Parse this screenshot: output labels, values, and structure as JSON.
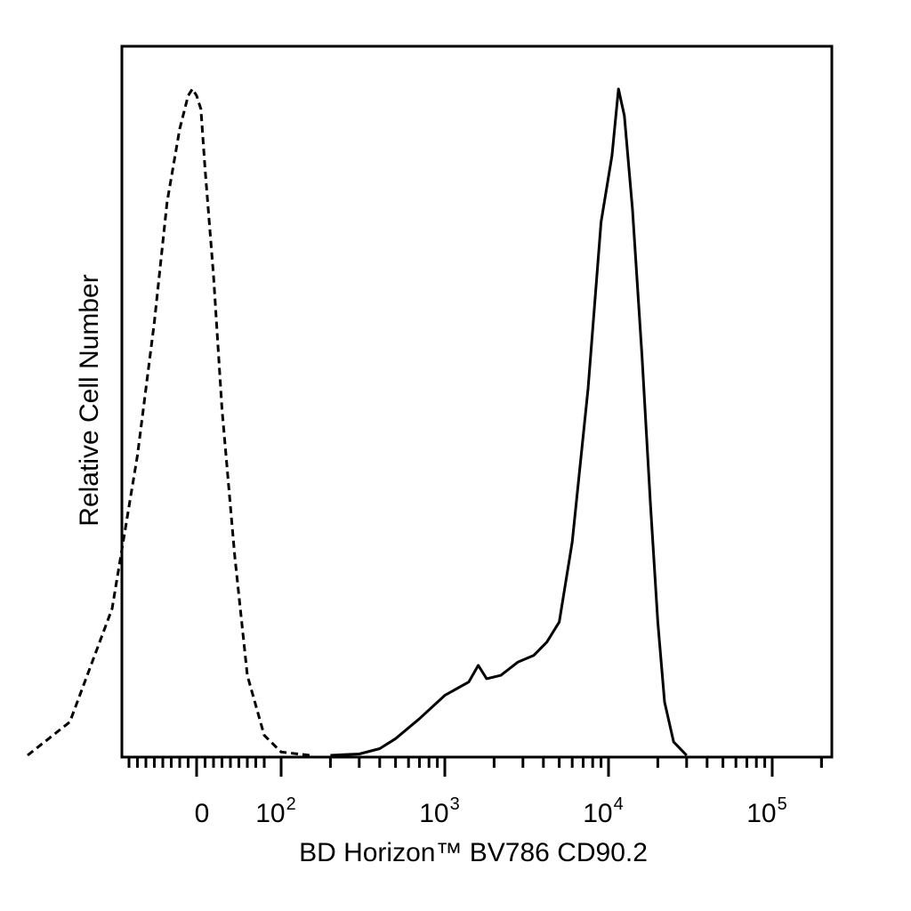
{
  "chart_data": {
    "type": "line",
    "title": "",
    "xlabel": "BD Horizon™ BV786 CD90.2",
    "ylabel": "Relative Cell Number",
    "x_scale": "biexponential",
    "xlim": [
      -500,
      250000
    ],
    "ylim": [
      0,
      1.0
    ],
    "grid": false,
    "legend": "none",
    "x_tick_labels": [
      {
        "value": 0,
        "base": "0",
        "exp": ""
      },
      {
        "value": 100,
        "base": "10",
        "exp": "2"
      },
      {
        "value": 1000,
        "base": "10",
        "exp": "3"
      },
      {
        "value": 10000,
        "base": "10",
        "exp": "4"
      },
      {
        "value": 100000,
        "base": "10",
        "exp": "5"
      }
    ],
    "series": [
      {
        "style": "dashed",
        "color": "#000000",
        "x": [
          -200,
          -150,
          -100,
          -70,
          -50,
          -35,
          -20,
          -10,
          -5,
          0,
          5,
          10,
          20,
          30,
          45,
          60,
          80,
          100,
          150
        ],
        "y": [
          0.0,
          0.05,
          0.22,
          0.45,
          0.65,
          0.83,
          0.94,
          0.99,
          1.0,
          0.99,
          0.97,
          0.88,
          0.72,
          0.52,
          0.3,
          0.12,
          0.03,
          0.005,
          0.0
        ]
      },
      {
        "style": "solid",
        "color": "#000000",
        "x": [
          200,
          300,
          400,
          500,
          700,
          1000,
          1400,
          1600,
          1800,
          2200,
          2800,
          3500,
          4200,
          5000,
          6000,
          7500,
          9000,
          10500,
          11500,
          12500,
          14000,
          16000,
          18000,
          20000,
          22000,
          25000,
          30000
        ],
        "y": [
          0.0,
          0.002,
          0.01,
          0.025,
          0.055,
          0.09,
          0.11,
          0.135,
          0.115,
          0.12,
          0.14,
          0.15,
          0.17,
          0.2,
          0.32,
          0.55,
          0.8,
          0.9,
          1.0,
          0.96,
          0.82,
          0.6,
          0.38,
          0.2,
          0.08,
          0.02,
          0.0
        ]
      }
    ]
  }
}
